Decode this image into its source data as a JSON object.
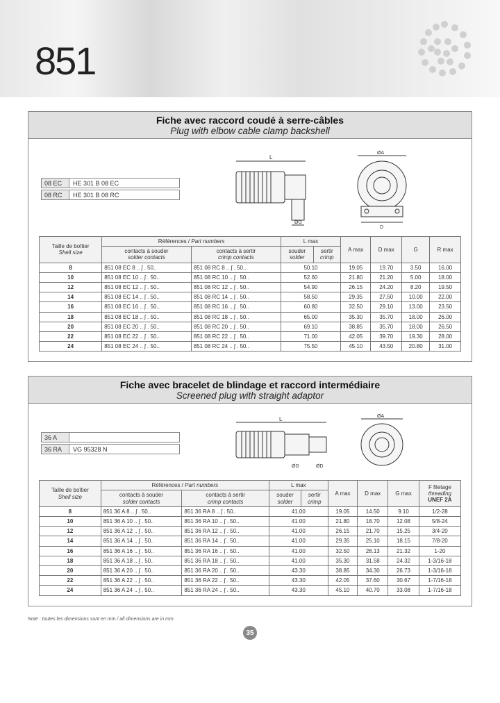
{
  "header": {
    "number": "851"
  },
  "pageNumber": "35",
  "footnote": "Note : toutes les dimensions sont en mm / all dimensions are in mm",
  "panel1": {
    "title_fr": "Fiche avec raccord coudé à serre-câbles",
    "title_en": "Plug with elbow cable clamp backshell",
    "codes": [
      {
        "k": "08 EC",
        "v": "HE 301 B 08 EC"
      },
      {
        "k": "08 RC",
        "v": "HE 301 B 08 RC"
      }
    ],
    "headers": {
      "shell_fr": "Taille de boîtier",
      "shell_en": "Shell size",
      "ref_fr": "Références",
      "ref_en": "Part numbers",
      "solder_fr": "contacts à souder",
      "solder_en": "solder contacts",
      "crimp_fr": "contacts à sertir",
      "crimp_en": "crimp contacts",
      "lmax": "L max",
      "lsolder_fr": "souder",
      "lsolder_en": "solder",
      "lcrimp_fr": "sertir",
      "lcrimp_en": "crimp",
      "a": "A max",
      "d": "D max",
      "g": "G",
      "r": "R max"
    },
    "rows": [
      {
        "size": "8",
        "solder": "851 08 EC 8 .. ʃ . 50..",
        "crimp": "851 08 RC 8 .. ʃ . 50..",
        "l": "50.10",
        "a": "19.05",
        "d": "19.70",
        "g": "3.50",
        "r": "16.00"
      },
      {
        "size": "10",
        "solder": "851 08 EC 10 .. ʃ . 50..",
        "crimp": "851 08 RC 10 .. ʃ . 50..",
        "l": "52.60",
        "a": "21.80",
        "d": "21.20",
        "g": "5.00",
        "r": "18.00"
      },
      {
        "size": "12",
        "solder": "851 08 EC 12 .. ʃ . 50..",
        "crimp": "851 08 RC 12 .. ʃ . 50..",
        "l": "54.90",
        "a": "26.15",
        "d": "24.20",
        "g": "8.20",
        "r": "19.50"
      },
      {
        "size": "14",
        "solder": "851 08 EC 14 .. ʃ . 50..",
        "crimp": "851 08 RC 14 .. ʃ . 50..",
        "l": "58.50",
        "a": "29.35",
        "d": "27.50",
        "g": "10.00",
        "r": "22.00"
      },
      {
        "size": "16",
        "solder": "851 08 EC 16 .. ʃ . 50..",
        "crimp": "851 08 RC 16 .. ʃ . 50..",
        "l": "60.80",
        "a": "32.50",
        "d": "29.10",
        "g": "13.00",
        "r": "23.50"
      },
      {
        "size": "18",
        "solder": "851 08 EC 18 .. ʃ . 50..",
        "crimp": "851 08 RC 18 .. ʃ . 50..",
        "l": "65.00",
        "a": "35.30",
        "d": "35.70",
        "g": "18.00",
        "r": "26.00"
      },
      {
        "size": "20",
        "solder": "851 08 EC 20 .. ʃ . 50..",
        "crimp": "851 08 RC 20 .. ʃ . 50..",
        "l": "69.10",
        "a": "38.85",
        "d": "35.70",
        "g": "18.00",
        "r": "26.50"
      },
      {
        "size": "22",
        "solder": "851 08 EC 22 .. ʃ . 50..",
        "crimp": "851 08 RC 22 .. ʃ . 50..",
        "l": "71.00",
        "a": "42.05",
        "d": "39.70",
        "g": "19.30",
        "r": "28.00"
      },
      {
        "size": "24",
        "solder": "851 08 EC 24 .. ʃ . 50..",
        "crimp": "851 08 RC 24 .. ʃ . 50..",
        "l": "75.50",
        "a": "45.10",
        "d": "43.50",
        "g": "20.80",
        "r": "31.00"
      }
    ]
  },
  "panel2": {
    "title_fr": "Fiche avec bracelet de blindage et raccord intermédiaire",
    "title_en": "Screened plug with straight adaptor",
    "codes": [
      {
        "k": "36 A",
        "v": ""
      },
      {
        "k": "36 RA",
        "v": "VG 95328 N"
      }
    ],
    "headers": {
      "shell_fr": "Taille de boîtier",
      "shell_en": "Shell size",
      "ref_fr": "Références",
      "ref_en": "Part numbers",
      "solder_fr": "contacts à souder",
      "solder_en": "solder contacts",
      "crimp_fr": "contacts à sertir",
      "crimp_en": "crimp contacts",
      "lmax": "L max",
      "lsolder_fr": "souder",
      "lsolder_en": "solder",
      "lcrimp_fr": "sertir",
      "lcrimp_en": "crimp",
      "a": "A max",
      "d": "D max",
      "g": "G max",
      "f_fr": "F filetage",
      "f_en": "threading",
      "f_unef": "UNEF 2A"
    },
    "rows": [
      {
        "size": "8",
        "solder": "851 36 A 8 .. ʃ . 50..",
        "crimp": "851 36 RA 8 .. ʃ . 50..",
        "l": "41.00",
        "a": "19.05",
        "d": "14.50",
        "g": "9.10",
        "f": "1/2-28"
      },
      {
        "size": "10",
        "solder": "851 36 A 10 .. ʃ . 50..",
        "crimp": "851 36 RA 10 .. ʃ . 50..",
        "l": "41.00",
        "a": "21.80",
        "d": "18.70",
        "g": "12.08",
        "f": "5/8-24"
      },
      {
        "size": "12",
        "solder": "851 36 A 12 .. ʃ . 50..",
        "crimp": "851 36 RA 12 .. ʃ . 50..",
        "l": "41.00",
        "a": "26.15",
        "d": "21.70",
        "g": "15.25",
        "f": "3/4-20"
      },
      {
        "size": "14",
        "solder": "851 36 A 14 .. ʃ . 50..",
        "crimp": "851 36 RA 14 .. ʃ . 50..",
        "l": "41.00",
        "a": "29.35",
        "d": "25.10",
        "g": "18.15",
        "f": "7/8-20"
      },
      {
        "size": "16",
        "solder": "851 36 A 16 .. ʃ . 50..",
        "crimp": "851 36 RA 16 .. ʃ . 50..",
        "l": "41.00",
        "a": "32.50",
        "d": "28.13",
        "g": "21.32",
        "f": "1-20"
      },
      {
        "size": "18",
        "solder": "851 36 A 18 .. ʃ . 50..",
        "crimp": "851 36 RA 18 .. ʃ . 50..",
        "l": "41.00",
        "a": "35.30",
        "d": "31.58",
        "g": "24.32",
        "f": "1-3/16-18"
      },
      {
        "size": "20",
        "solder": "851 36 A 20 .. ʃ . 50..",
        "crimp": "851 36 RA 20 .. ʃ . 50..",
        "l": "43.30",
        "a": "38.85",
        "d": "34.30",
        "g": "26.73",
        "f": "1-3/16-18"
      },
      {
        "size": "22",
        "solder": "851 36 A 22 .. ʃ . 50..",
        "crimp": "851 36 RA 22 .. ʃ . 50..",
        "l": "43.30",
        "a": "42.05",
        "d": "37.60",
        "g": "30.67",
        "f": "1-7/16-18"
      },
      {
        "size": "24",
        "solder": "851 36 A 24 .. ʃ . 50..",
        "crimp": "851 36 RA 24 .. ʃ . 50..",
        "l": "43.30",
        "a": "45.10",
        "d": "40.70",
        "g": "33.08",
        "f": "1-7/16-18"
      }
    ]
  },
  "colors": {
    "border": "#777777",
    "thBg": "#f2f2f2",
    "titleBg": "#e0e0e0",
    "pageNumBg": "#888888"
  }
}
